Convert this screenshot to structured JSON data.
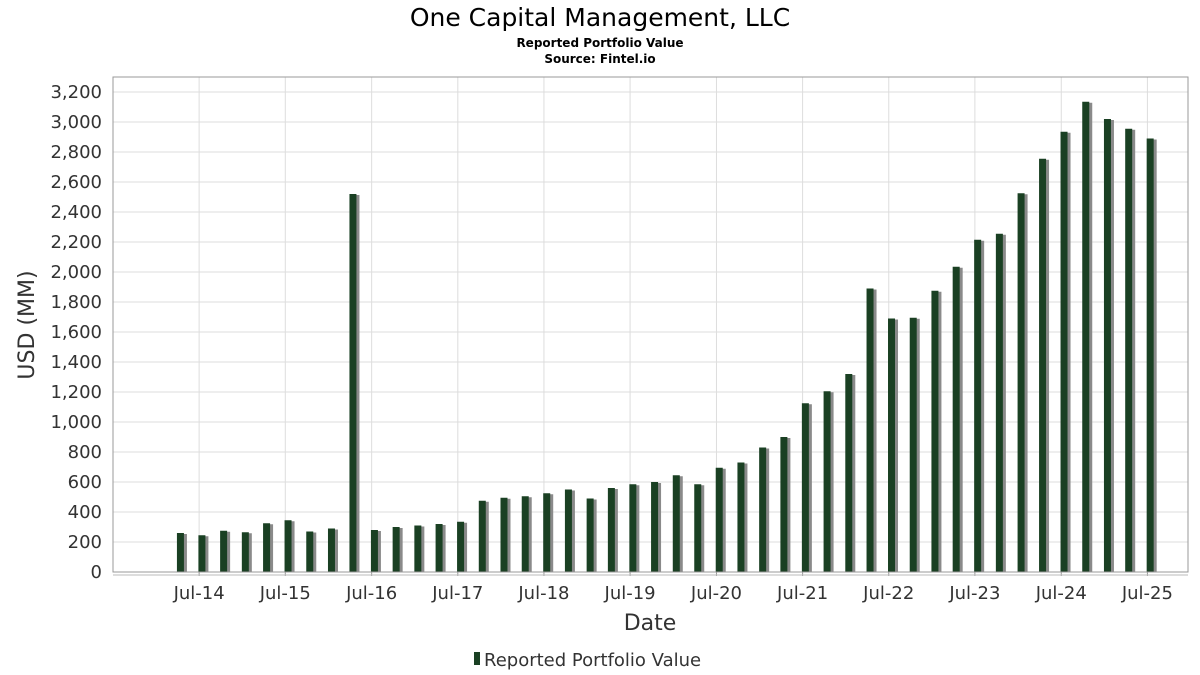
{
  "header": {
    "title": "One Capital Management, LLC",
    "subtitle": "Reported Portfolio Value",
    "source": "Source: Fintel.io"
  },
  "colors": {
    "bar": "#1a4023",
    "bar_shadow": "#8a8a8a",
    "grid": "#dddddd",
    "frame": "#999999"
  },
  "chart_data": {
    "type": "bar",
    "title": "One Capital Management, LLC",
    "subtitle": "Reported Portfolio Value",
    "xlabel": "Date",
    "ylabel": "USD (MM)",
    "ylim": [
      0,
      3300
    ],
    "grid": true,
    "legend_position": "bottom-center",
    "yticks": [
      0,
      200,
      400,
      600,
      800,
      1000,
      1200,
      1400,
      1600,
      1800,
      2000,
      2200,
      2400,
      2600,
      2800,
      3000,
      3200
    ],
    "xtick_labels": [
      "Jul-14",
      "Jul-15",
      "Jul-16",
      "Jul-17",
      "Jul-18",
      "Jul-19",
      "Jul-20",
      "Jul-21",
      "Jul-22",
      "Jul-23",
      "Jul-24",
      "Jul-25"
    ],
    "series": [
      {
        "name": "Reported Portfolio Value",
        "x": [
          "2014-03-31",
          "2014-06-30",
          "2014-09-30",
          "2014-12-31",
          "2015-03-31",
          "2015-06-30",
          "2015-09-30",
          "2015-12-31",
          "2016-03-31",
          "2016-06-30",
          "2016-09-30",
          "2016-12-31",
          "2017-03-31",
          "2017-06-30",
          "2017-09-30",
          "2017-12-31",
          "2018-03-31",
          "2018-06-30",
          "2018-09-30",
          "2018-12-31",
          "2019-03-31",
          "2019-06-30",
          "2019-09-30",
          "2019-12-31",
          "2020-03-31",
          "2020-06-30",
          "2020-09-30",
          "2020-12-31",
          "2021-03-31",
          "2021-06-30",
          "2021-09-30",
          "2021-12-31",
          "2022-03-31",
          "2022-06-30",
          "2022-09-30",
          "2022-12-31",
          "2023-03-31",
          "2023-06-30",
          "2023-09-30",
          "2023-12-31",
          "2024-03-31",
          "2024-06-30",
          "2024-09-30",
          "2024-12-31",
          "2025-03-31",
          "2025-06-30"
        ],
        "values": [
          260,
          245,
          275,
          265,
          325,
          345,
          270,
          290,
          2520,
          280,
          300,
          310,
          320,
          335,
          475,
          495,
          505,
          525,
          550,
          490,
          560,
          585,
          600,
          645,
          585,
          695,
          730,
          830,
          900,
          1125,
          1205,
          1320,
          1890,
          1690,
          1695,
          1875,
          2035,
          2215,
          2255,
          2525,
          2755,
          2935,
          3135,
          3020,
          2955,
          2890
        ]
      }
    ]
  }
}
